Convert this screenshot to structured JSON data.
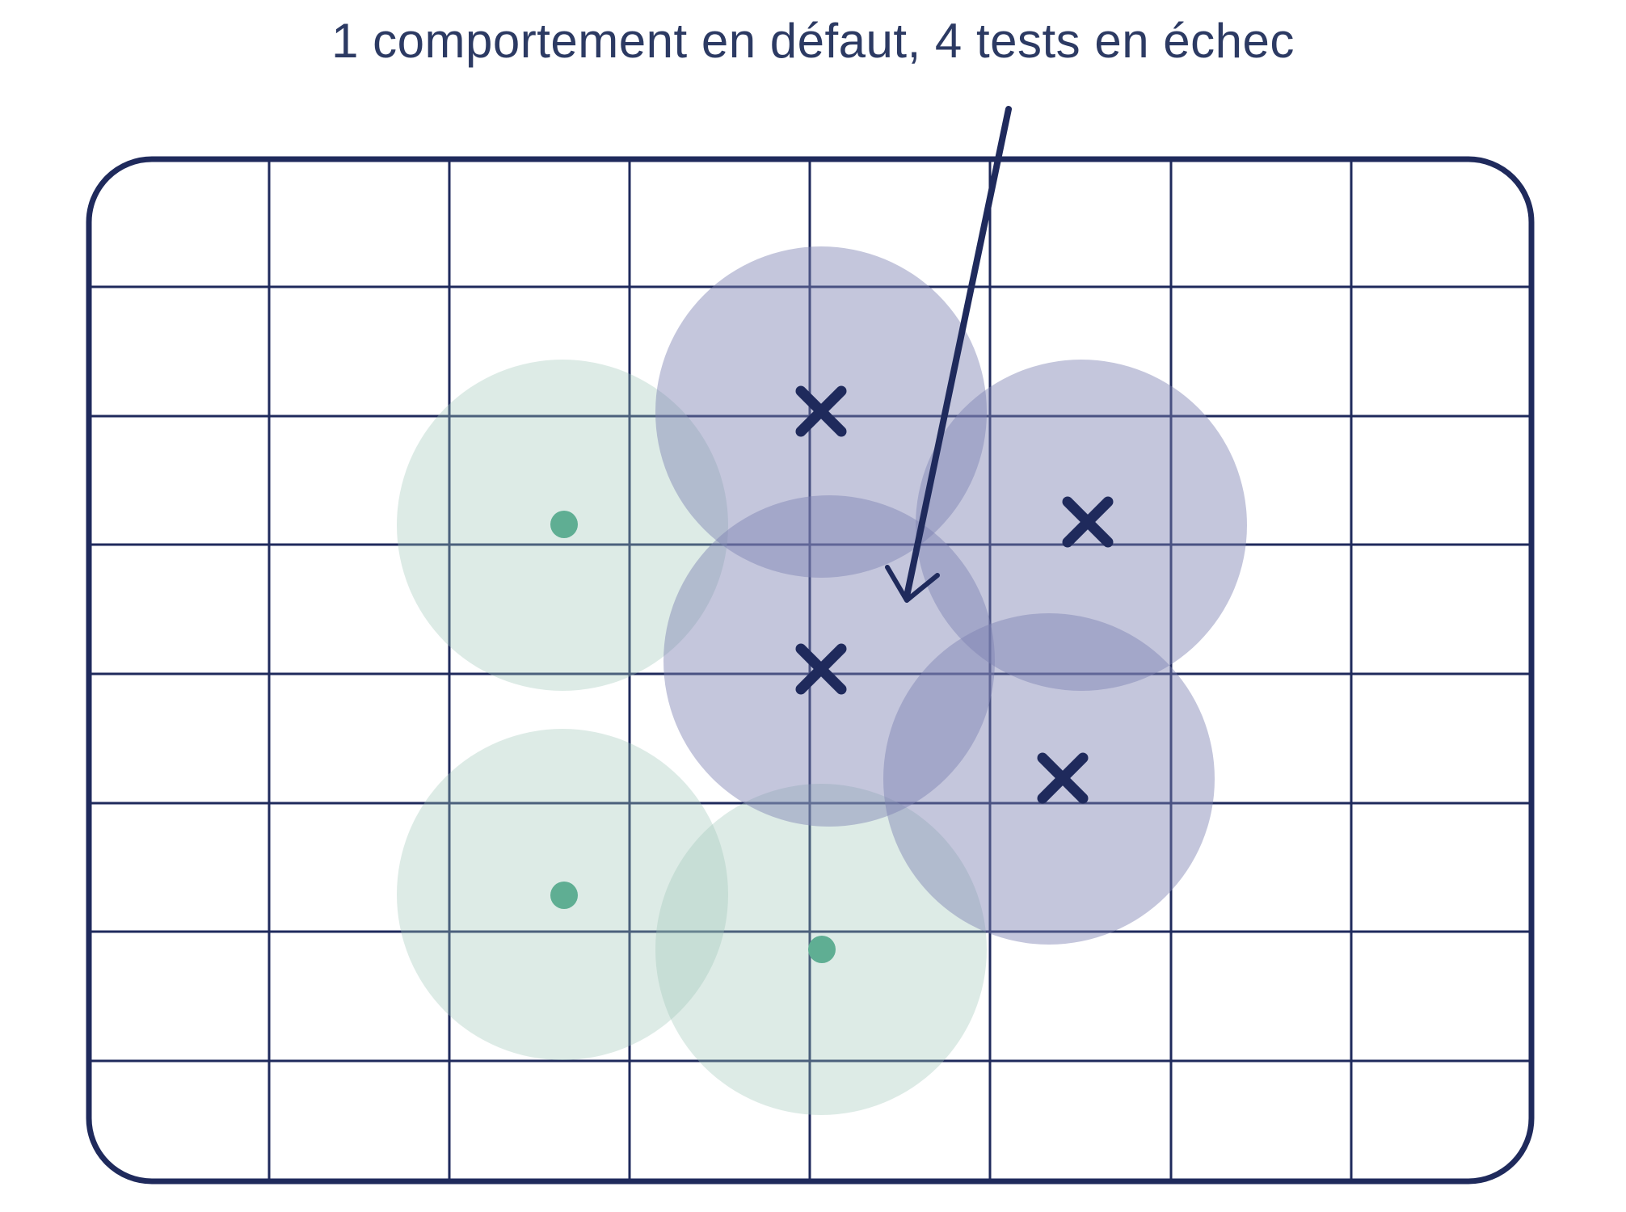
{
  "caption": "1 comportement en défaut, 4 tests en échec",
  "colors": {
    "frame": "#1f2a5c",
    "grid": "#1f2a5c",
    "failing_fill": "#7d80b2",
    "passing_fill": "#9ec6b6",
    "failing_marker": "#1f2a5c",
    "passing_marker": "#5fae93",
    "arrow": "#1f2a5c",
    "caption": "#2c3a63"
  },
  "icons": {
    "failing_test": "cross-icon",
    "passing_test": "dot-icon",
    "pointer": "arrow-icon"
  },
  "legend_counts": {
    "faulty_behaviours": 1,
    "failing_tests": 4,
    "passing_tests": 3
  }
}
